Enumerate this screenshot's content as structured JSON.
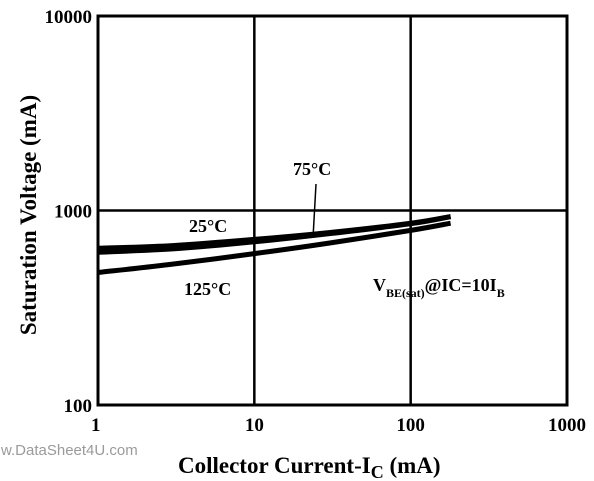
{
  "watermark": "w.DataSheet4U.com",
  "chart_data": {
    "type": "line",
    "xlabel": "Collector Current-I",
    "xlabel_sub": "C",
    "xlabel_unit": " (mA)",
    "ylabel": "Saturation  Voltage (mA)",
    "x_scale": "log",
    "y_scale": "log",
    "xlim": [
      1,
      1000
    ],
    "ylim": [
      100,
      10000
    ],
    "x_ticks": [
      1,
      10,
      100,
      1000
    ],
    "x_tick_labels": [
      "1",
      "10",
      "100",
      "1000"
    ],
    "y_ticks": [
      100,
      1000,
      10000
    ],
    "y_tick_labels": [
      "100",
      "1000",
      "10000"
    ],
    "grid": true,
    "series": [
      {
        "name": "25°C",
        "x": [
          1,
          3,
          10,
          30,
          100,
          180
        ],
        "y": [
          640,
          660,
          710,
          770,
          860,
          930
        ]
      },
      {
        "name": "75°C",
        "x": [
          1,
          3,
          10,
          30,
          100,
          180
        ],
        "y": [
          610,
          635,
          690,
          760,
          855,
          930
        ]
      },
      {
        "name": "125°C",
        "x": [
          1,
          3,
          10,
          30,
          100,
          180
        ],
        "y": [
          480,
          530,
          600,
          680,
          790,
          860
        ]
      }
    ],
    "annotations": {
      "label_25": "25°C",
      "label_75": "75°C",
      "label_125": "125°C",
      "condition_main": "V",
      "condition_sub": "BE(sat)",
      "condition_mid": "@IC=10I",
      "condition_sub2": "B"
    }
  }
}
